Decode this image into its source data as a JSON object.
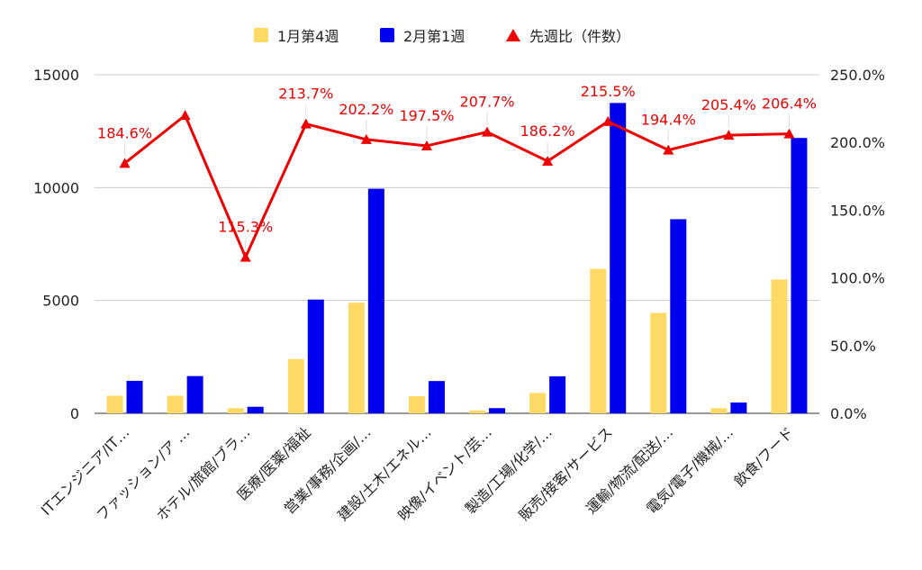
{
  "chart_data": {
    "type": "bar",
    "categories": [
      "ITエンジニア/IT…",
      "ファッション/ア …",
      "ホテル/旅館/ブラ…",
      "医療/医薬/福祉",
      "営業/事務/企画/…",
      "建設/土木/エネル…",
      "映像/イベント/芸…",
      "製造/工場/化学/…",
      "販売/接客/サービス",
      "運輸/物流/配送/…",
      "電気/電子/機械/…",
      "飲食/フード"
    ],
    "series": [
      {
        "name": "1月第4週",
        "type": "bar",
        "color": "#FFD966",
        "axis": "left",
        "values": [
          780,
          780,
          230,
          2400,
          4900,
          760,
          130,
          900,
          6400,
          4450,
          230,
          5930
        ]
      },
      {
        "name": "2月第1週",
        "type": "bar",
        "color": "#0000EE",
        "axis": "left",
        "values": [
          1440,
          1650,
          290,
          5040,
          9950,
          1430,
          230,
          1640,
          13750,
          8600,
          480,
          12200
        ]
      },
      {
        "name": "先週比（件数）",
        "type": "line",
        "color": "#EE0000",
        "axis": "right",
        "values": [
          184.6,
          220.0,
          115.3,
          213.7,
          202.2,
          197.5,
          207.7,
          186.2,
          215.5,
          194.4,
          205.4,
          206.4
        ],
        "labels": [
          "184.6%",
          "",
          "115.3%",
          "213.7%",
          "202.2%",
          "197.5%",
          "207.7%",
          "186.2%",
          "215.5%",
          "194.4%",
          "205.4%",
          "206.4%"
        ]
      }
    ],
    "y_left": {
      "min": 0,
      "max": 15000,
      "ticks": [
        "0",
        "5000",
        "10000",
        "15000"
      ]
    },
    "y_right": {
      "min": 0,
      "max": 250,
      "ticks": [
        "0.0%",
        "50.0%",
        "100.0%",
        "150.0%",
        "200.0%",
        "250.0%"
      ]
    },
    "legend_position": "top",
    "grid": true
  }
}
